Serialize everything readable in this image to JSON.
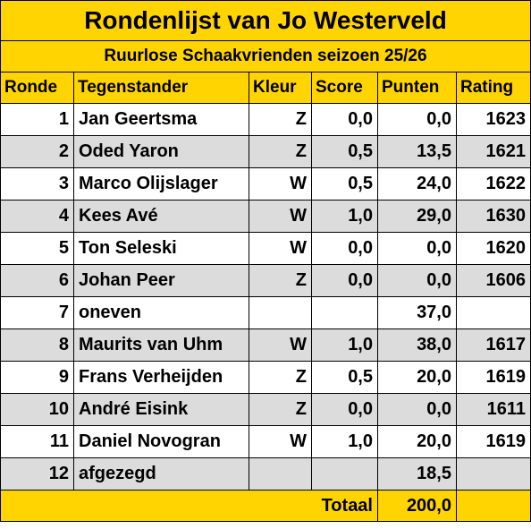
{
  "title": "Rondenlijst van Jo Westerveld",
  "subtitle": "Ruurlose Schaakvrienden seizoen 25/26",
  "columns": [
    "Ronde",
    "Tegenstander",
    "Kleur",
    "Score",
    "Punten",
    "Rating"
  ],
  "rows": [
    {
      "ronde": "1",
      "tegenstander": "Jan Geertsma",
      "kleur": "Z",
      "score": "0,0",
      "punten": "0,0",
      "rating": "1623"
    },
    {
      "ronde": "2",
      "tegenstander": "Oded Yaron",
      "kleur": "Z",
      "score": "0,5",
      "punten": "13,5",
      "rating": "1621"
    },
    {
      "ronde": "3",
      "tegenstander": "Marco Olijslager",
      "kleur": "W",
      "score": "0,5",
      "punten": "24,0",
      "rating": "1622"
    },
    {
      "ronde": "4",
      "tegenstander": "Kees Avé",
      "kleur": "W",
      "score": "1,0",
      "punten": "29,0",
      "rating": "1630"
    },
    {
      "ronde": "5",
      "tegenstander": "Ton Seleski",
      "kleur": "W",
      "score": "0,0",
      "punten": "0,0",
      "rating": "1620"
    },
    {
      "ronde": "6",
      "tegenstander": "Johan Peer",
      "kleur": "Z",
      "score": "0,0",
      "punten": "0,0",
      "rating": "1606"
    },
    {
      "ronde": "7",
      "tegenstander": "oneven",
      "kleur": "",
      "score": "",
      "punten": "37,0",
      "rating": ""
    },
    {
      "ronde": "8",
      "tegenstander": "Maurits van Uhm",
      "kleur": "W",
      "score": "1,0",
      "punten": "38,0",
      "rating": "1617"
    },
    {
      "ronde": "9",
      "tegenstander": "Frans Verheijden",
      "kleur": "Z",
      "score": "0,5",
      "punten": "20,0",
      "rating": "1619"
    },
    {
      "ronde": "10",
      "tegenstander": "André Eisink",
      "kleur": "Z",
      "score": "0,0",
      "punten": "0,0",
      "rating": "1611"
    },
    {
      "ronde": "11",
      "tegenstander": "Daniel Novogran",
      "kleur": "W",
      "score": "1,0",
      "punten": "20,0",
      "rating": "1619"
    },
    {
      "ronde": "12",
      "tegenstander": "afgezegd",
      "kleur": "",
      "score": "",
      "punten": "18,5",
      "rating": ""
    }
  ],
  "total": {
    "label": "Totaal",
    "value": "200,0"
  },
  "colors": {
    "header_bg": "#ffd400",
    "alt_row_bg": "#dcdcdc",
    "row_bg": "#ffffff"
  }
}
